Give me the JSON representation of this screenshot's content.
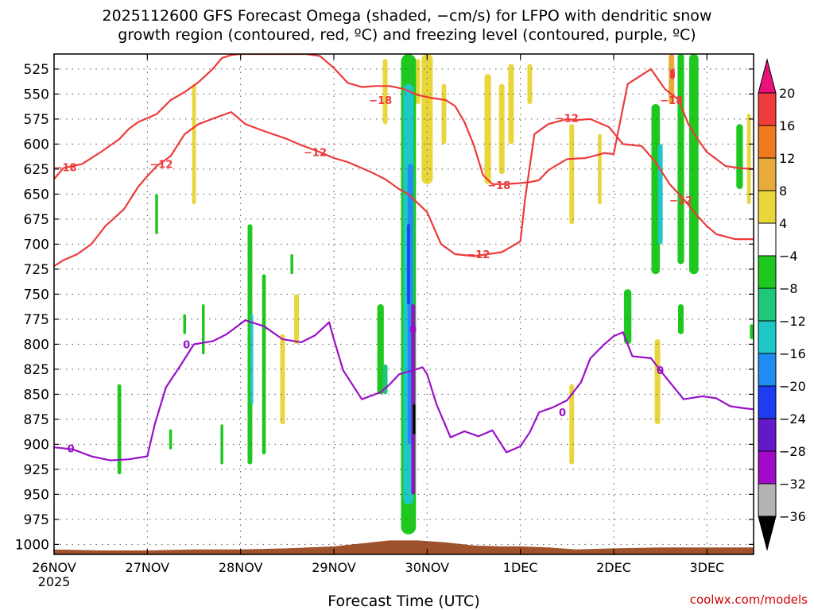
{
  "header": {
    "title_line1": "2025112600 GFS Forecast Omega (shaded, −cm/s) for LFPO with dendritic snow",
    "title_line2": "growth region (contoured, red, ºC) and freezing level (contoured, purple, ºC)"
  },
  "footer": {
    "credit": "coolwx.com/models"
  },
  "colors": {
    "frame": "#000000",
    "grid": "#555555",
    "dgz": "#ee3a3a",
    "freezing": "#9a10c8",
    "terrain": "#a0522d"
  },
  "chart_data": {
    "type": "heatmap",
    "title": "2025112600 GFS Forecast Omega (shaded, −cm/s) for LFPO with dendritic snow growth region (contoured, red, ºC) and freezing level (contoured, purple, ºC)",
    "xlabel": "Forecast Time (UTC)",
    "ylabel": "",
    "x_unit": "days since 26NOV 00Z",
    "xlim": [
      0,
      7.5
    ],
    "ylim": [
      1010,
      510
    ],
    "x_tick_labels": [
      "26NOV",
      "27NOV",
      "28NOV",
      "29NOV",
      "30NOV",
      "1DEC",
      "2DEC",
      "3DEC"
    ],
    "x_tick_values": [
      0,
      1,
      2,
      3,
      4,
      5,
      6,
      7
    ],
    "x_year_label": "2025",
    "y_ticks": [
      525,
      550,
      575,
      600,
      625,
      650,
      675,
      700,
      725,
      750,
      775,
      800,
      825,
      850,
      875,
      900,
      925,
      950,
      975,
      1000
    ],
    "grid": true,
    "colorbar": {
      "levels": [
        20,
        16,
        12,
        8,
        4,
        -4,
        -8,
        -12,
        -16,
        -20,
        -24,
        -28,
        -32,
        -36
      ],
      "labels": [
        "20",
        "16",
        "12",
        "8",
        "4",
        "−4",
        "−8",
        "−12",
        "−16",
        "−20",
        "−24",
        "−28",
        "−32",
        "−36"
      ],
      "colors": [
        "#e8127a",
        "#f03c3c",
        "#f07a1e",
        "#e8aa3a",
        "#e8d63a",
        "#ffffff",
        "#1ec81e",
        "#1ec878",
        "#1ec8c8",
        "#1e8cf0",
        "#1e3cf0",
        "#6418c8",
        "#a00ac8",
        "#b4b4b4",
        "#000000"
      ]
    },
    "series": [
      {
        "name": "-18 ºC isotherm",
        "color": "#ee3a3a",
        "points": [
          [
            0,
            635
          ],
          [
            0.1,
            624
          ],
          [
            0.3,
            620
          ],
          [
            0.5,
            608
          ],
          [
            0.7,
            595
          ],
          [
            0.8,
            585
          ],
          [
            0.9,
            578
          ],
          [
            1.1,
            570
          ],
          [
            1.25,
            556
          ],
          [
            1.4,
            548
          ],
          [
            1.55,
            538
          ],
          [
            1.7,
            525
          ],
          [
            1.8,
            514
          ],
          [
            1.9,
            511
          ],
          [
            2.0,
            510
          ],
          [
            2.3,
            510
          ],
          [
            2.7,
            510
          ],
          [
            2.85,
            512
          ],
          [
            3.0,
            524
          ],
          [
            3.15,
            539
          ],
          [
            3.3,
            543
          ],
          [
            3.45,
            542
          ],
          [
            3.6,
            542
          ],
          [
            3.75,
            545
          ],
          [
            3.9,
            551
          ],
          [
            4.05,
            554
          ],
          [
            4.2,
            556
          ],
          [
            4.3,
            562
          ],
          [
            4.4,
            578
          ],
          [
            4.5,
            601
          ],
          [
            4.6,
            631
          ],
          [
            4.7,
            640
          ],
          [
            4.85,
            640
          ],
          [
            5.0,
            639
          ],
          [
            5.1,
            638
          ],
          [
            5.2,
            636
          ],
          [
            5.3,
            626
          ],
          [
            5.5,
            615
          ],
          [
            5.7,
            614
          ],
          [
            5.9,
            609
          ],
          [
            6.0,
            610
          ],
          [
            6.15,
            540
          ],
          [
            6.4,
            525
          ],
          [
            6.55,
            545
          ],
          [
            6.7,
            556
          ],
          [
            6.8,
            580
          ],
          [
            6.9,
            595
          ],
          [
            7.0,
            608
          ],
          [
            7.1,
            615
          ],
          [
            7.2,
            622
          ],
          [
            7.35,
            624
          ],
          [
            7.5,
            625
          ]
        ],
        "labels": [
          {
            "text": "−18",
            "x": 0.12,
            "y": 623
          },
          {
            "text": "−18",
            "x": 3.5,
            "y": 556
          },
          {
            "text": "−18",
            "x": 4.77,
            "y": 641
          },
          {
            "text": "−18",
            "x": 6.62,
            "y": 556
          }
        ]
      },
      {
        "name": "-12 ºC isotherm",
        "color": "#ee3a3a",
        "points": [
          [
            0,
            722
          ],
          [
            0.1,
            716
          ],
          [
            0.25,
            710
          ],
          [
            0.4,
            700
          ],
          [
            0.55,
            682
          ],
          [
            0.75,
            665
          ],
          [
            0.9,
            643
          ],
          [
            1.0,
            632
          ],
          [
            1.1,
            622
          ],
          [
            1.25,
            612
          ],
          [
            1.4,
            590
          ],
          [
            1.55,
            580
          ],
          [
            1.75,
            573
          ],
          [
            1.9,
            568
          ],
          [
            2.05,
            580
          ],
          [
            2.25,
            587
          ],
          [
            2.5,
            595
          ],
          [
            2.65,
            601
          ],
          [
            2.85,
            608
          ],
          [
            3.0,
            614
          ],
          [
            3.15,
            618
          ],
          [
            3.4,
            628
          ],
          [
            3.55,
            635
          ],
          [
            3.7,
            645
          ],
          [
            3.8,
            650
          ],
          [
            4.0,
            668
          ],
          [
            4.15,
            700
          ],
          [
            4.3,
            710
          ],
          [
            4.5,
            712
          ],
          [
            4.8,
            708
          ],
          [
            4.95,
            700
          ],
          [
            5.0,
            697
          ],
          [
            5.05,
            655
          ],
          [
            5.15,
            590
          ],
          [
            5.3,
            580
          ],
          [
            5.5,
            575
          ],
          [
            5.6,
            576
          ],
          [
            5.75,
            575
          ],
          [
            5.95,
            583
          ],
          [
            6.1,
            600
          ],
          [
            6.3,
            602
          ],
          [
            6.45,
            618
          ],
          [
            6.6,
            640
          ],
          [
            6.75,
            655
          ],
          [
            6.9,
            672
          ],
          [
            7.0,
            682
          ],
          [
            7.1,
            690
          ],
          [
            7.3,
            695
          ],
          [
            7.5,
            695
          ]
        ],
        "labels": [
          {
            "text": "−12",
            "x": 1.15,
            "y": 620
          },
          {
            "text": "−12",
            "x": 2.8,
            "y": 608
          },
          {
            "text": "−12",
            "x": 4.55,
            "y": 710
          },
          {
            "text": "−12",
            "x": 5.5,
            "y": 574
          },
          {
            "text": "−12",
            "x": 6.72,
            "y": 656
          }
        ]
      },
      {
        "name": "0 ºC isotherm (freezing level)",
        "color": "#9a10c8",
        "points": [
          [
            0,
            903
          ],
          [
            0.2,
            905
          ],
          [
            0.4,
            912
          ],
          [
            0.6,
            916
          ],
          [
            0.8,
            915
          ],
          [
            1.0,
            912
          ],
          [
            1.08,
            880
          ],
          [
            1.2,
            843
          ],
          [
            1.35,
            822
          ],
          [
            1.5,
            800
          ],
          [
            1.7,
            797
          ],
          [
            1.85,
            790
          ],
          [
            2.05,
            776
          ],
          [
            2.25,
            782
          ],
          [
            2.45,
            795
          ],
          [
            2.65,
            798
          ],
          [
            2.8,
            791
          ],
          [
            2.95,
            778
          ],
          [
            3.0,
            795
          ],
          [
            3.1,
            826
          ],
          [
            3.3,
            855
          ],
          [
            3.5,
            848
          ],
          [
            3.6,
            840
          ],
          [
            3.7,
            830
          ],
          [
            3.85,
            826
          ],
          [
            3.95,
            823
          ],
          [
            4.0,
            830
          ],
          [
            4.1,
            860
          ],
          [
            4.25,
            893
          ],
          [
            4.4,
            887
          ],
          [
            4.55,
            892
          ],
          [
            4.7,
            886
          ],
          [
            4.85,
            908
          ],
          [
            5.0,
            902
          ],
          [
            5.1,
            888
          ],
          [
            5.2,
            868
          ],
          [
            5.35,
            863
          ],
          [
            5.5,
            856
          ],
          [
            5.65,
            838
          ],
          [
            5.75,
            814
          ],
          [
            5.9,
            800
          ],
          [
            6.0,
            792
          ],
          [
            6.1,
            788
          ],
          [
            6.2,
            812
          ],
          [
            6.4,
            814
          ],
          [
            6.55,
            832
          ],
          [
            6.75,
            855
          ],
          [
            6.95,
            852
          ],
          [
            7.1,
            854
          ],
          [
            7.25,
            862
          ],
          [
            7.4,
            864
          ],
          [
            7.5,
            865
          ]
        ],
        "labels": [
          {
            "text": "0",
            "x": 0.18,
            "y": 904
          },
          {
            "text": "0",
            "x": 1.42,
            "y": 800
          },
          {
            "text": "0",
            "x": 3.85,
            "y": 785
          },
          {
            "text": "0",
            "x": 5.45,
            "y": 868
          },
          {
            "text": "0",
            "x": 6.5,
            "y": 826
          }
        ]
      }
    ],
    "omega_cells": [
      {
        "x": 4.65,
        "p0": 530,
        "p1": 640,
        "w": 0.07,
        "v": 6
      },
      {
        "x": 4.8,
        "p0": 540,
        "p1": 630,
        "w": 0.06,
        "v": 6
      },
      {
        "x": 4.9,
        "p0": 520,
        "p1": 600,
        "w": 0.06,
        "v": 6
      },
      {
        "x": 5.1,
        "p0": 520,
        "p1": 560,
        "w": 0.05,
        "v": 6
      },
      {
        "x": 5.55,
        "p0": 580,
        "p1": 680,
        "w": 0.05,
        "v": 6
      },
      {
        "x": 5.85,
        "p0": 590,
        "p1": 660,
        "w": 0.04,
        "v": 6
      },
      {
        "x": 4.0,
        "p0": 510,
        "p1": 640,
        "w": 0.12,
        "v": 5
      },
      {
        "x": 4.18,
        "p0": 540,
        "p1": 600,
        "w": 0.05,
        "v": 5
      },
      {
        "x": 3.55,
        "p0": 515,
        "p1": 580,
        "w": 0.05,
        "v": 6
      },
      {
        "x": 3.9,
        "p0": 515,
        "p1": 560,
        "w": 0.05,
        "v": 6
      },
      {
        "x": 1.5,
        "p0": 540,
        "p1": 660,
        "w": 0.04,
        "v": 6
      },
      {
        "x": 2.6,
        "p0": 750,
        "p1": 800,
        "w": 0.05,
        "v": 6
      },
      {
        "x": 2.45,
        "p0": 790,
        "p1": 880,
        "w": 0.05,
        "v": 6
      },
      {
        "x": 5.55,
        "p0": 840,
        "p1": 920,
        "w": 0.05,
        "v": 6
      },
      {
        "x": 6.47,
        "p0": 795,
        "p1": 880,
        "w": 0.06,
        "v": 7
      },
      {
        "x": 6.62,
        "p0": 510,
        "p1": 560,
        "w": 0.06,
        "v": 9
      },
      {
        "x": 6.63,
        "p0": 525,
        "p1": 535,
        "w": 0.05,
        "v": 17
      },
      {
        "x": 7.45,
        "p0": 570,
        "p1": 660,
        "w": 0.04,
        "v": 6
      },
      {
        "x": 6.45,
        "p0": 560,
        "p1": 730,
        "w": 0.09,
        "v": -7
      },
      {
        "x": 6.5,
        "p0": 600,
        "p1": 700,
        "w": 0.05,
        "v": -13
      },
      {
        "x": 6.72,
        "p0": 510,
        "p1": 720,
        "w": 0.07,
        "v": -7
      },
      {
        "x": 6.86,
        "p0": 510,
        "p1": 730,
        "w": 0.1,
        "v": -7
      },
      {
        "x": 6.72,
        "p0": 760,
        "p1": 790,
        "w": 0.06,
        "v": -7
      },
      {
        "x": 6.15,
        "p0": 745,
        "p1": 800,
        "w": 0.08,
        "v": -7
      },
      {
        "x": 7.35,
        "p0": 580,
        "p1": 645,
        "w": 0.07,
        "v": -7
      },
      {
        "x": 7.48,
        "p0": 780,
        "p1": 795,
        "w": 0.04,
        "v": -7
      },
      {
        "x": 3.8,
        "p0": 510,
        "p1": 990,
        "w": 0.16,
        "v": -7
      },
      {
        "x": 3.8,
        "p0": 540,
        "p1": 960,
        "w": 0.11,
        "v": -13
      },
      {
        "x": 3.82,
        "p0": 620,
        "p1": 900,
        "w": 0.06,
        "v": -17
      },
      {
        "x": 3.8,
        "p0": 680,
        "p1": 760,
        "w": 0.03,
        "v": -22
      },
      {
        "x": 3.85,
        "p0": 760,
        "p1": 950,
        "w": 0.04,
        "v": -29
      },
      {
        "x": 3.86,
        "p0": 860,
        "p1": 890,
        "w": 0.015,
        "v": -40
      },
      {
        "x": 3.5,
        "p0": 760,
        "p1": 850,
        "w": 0.07,
        "v": -7
      },
      {
        "x": 3.55,
        "p0": 820,
        "p1": 850,
        "w": 0.05,
        "v": -9
      },
      {
        "x": 2.1,
        "p0": 680,
        "p1": 920,
        "w": 0.05,
        "v": -7
      },
      {
        "x": 2.12,
        "p0": 770,
        "p1": 860,
        "w": 0.03,
        "v": -13
      },
      {
        "x": 2.25,
        "p0": 730,
        "p1": 910,
        "w": 0.04,
        "v": -7
      },
      {
        "x": 1.6,
        "p0": 760,
        "p1": 810,
        "w": 0.03,
        "v": -7
      },
      {
        "x": 1.4,
        "p0": 770,
        "p1": 790,
        "w": 0.03,
        "v": -7
      },
      {
        "x": 1.1,
        "p0": 650,
        "p1": 690,
        "w": 0.03,
        "v": -7
      },
      {
        "x": 0.7,
        "p0": 840,
        "p1": 930,
        "w": 0.04,
        "v": -7
      },
      {
        "x": 2.55,
        "p0": 710,
        "p1": 730,
        "w": 0.03,
        "v": -7
      },
      {
        "x": 1.8,
        "p0": 880,
        "p1": 920,
        "w": 0.03,
        "v": -7
      },
      {
        "x": 1.25,
        "p0": 885,
        "p1": 905,
        "w": 0.03,
        "v": -7
      }
    ],
    "terrain_top": [
      [
        0,
        1005
      ],
      [
        0.5,
        1006
      ],
      [
        1.0,
        1006
      ],
      [
        1.5,
        1005
      ],
      [
        2.0,
        1005
      ],
      [
        2.5,
        1004
      ],
      [
        3.0,
        1002
      ],
      [
        3.3,
        999
      ],
      [
        3.6,
        996
      ],
      [
        3.9,
        996
      ],
      [
        4.2,
        998
      ],
      [
        4.5,
        1001
      ],
      [
        4.8,
        1002
      ],
      [
        5.0,
        1002
      ],
      [
        5.3,
        1003
      ],
      [
        5.6,
        1005
      ],
      [
        6.0,
        1004
      ],
      [
        6.5,
        1003
      ],
      [
        7.0,
        1003
      ],
      [
        7.5,
        1003
      ]
    ]
  }
}
